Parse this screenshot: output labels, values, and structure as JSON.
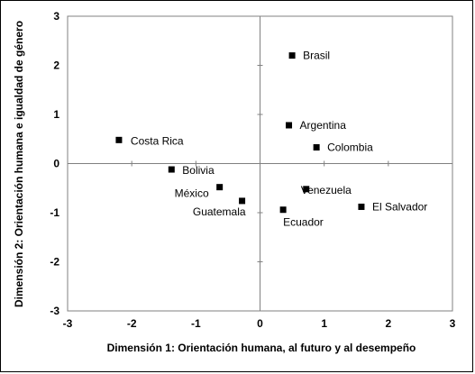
{
  "chart_data": {
    "type": "scatter",
    "xlabel": "Dimensión 1:  Orientación humana, al futuro y al desempeño",
    "ylabel": "Dimensión 2: Orientación humana e igualdad de género",
    "xlim": [
      -3,
      3
    ],
    "ylim": [
      -3,
      3
    ],
    "xticks": [
      "-3",
      "-2",
      "-1",
      "0",
      "1",
      "2",
      "3"
    ],
    "yticks": [
      "-3",
      "-2",
      "-1",
      "0",
      "1",
      "2",
      "3"
    ],
    "grid": false,
    "marker": "square",
    "points": [
      {
        "label": "Brasil",
        "x": 0.5,
        "y": 2.2
      },
      {
        "label": "Argentina",
        "x": 0.45,
        "y": 0.78
      },
      {
        "label": "Colombia",
        "x": 0.88,
        "y": 0.33
      },
      {
        "label": "Costa Rica",
        "x": -2.2,
        "y": 0.48
      },
      {
        "label": "Bolivia",
        "x": -1.38,
        "y": -0.12
      },
      {
        "label": "México",
        "x": -0.63,
        "y": -0.48
      },
      {
        "label": "Guatemala",
        "x": -0.28,
        "y": -0.76
      },
      {
        "label": "Venezuela",
        "x": 0.72,
        "y": -0.52
      },
      {
        "label": "El Salvador",
        "x": 1.58,
        "y": -0.88
      },
      {
        "label": "Ecuador",
        "x": 0.36,
        "y": -0.94
      }
    ]
  }
}
